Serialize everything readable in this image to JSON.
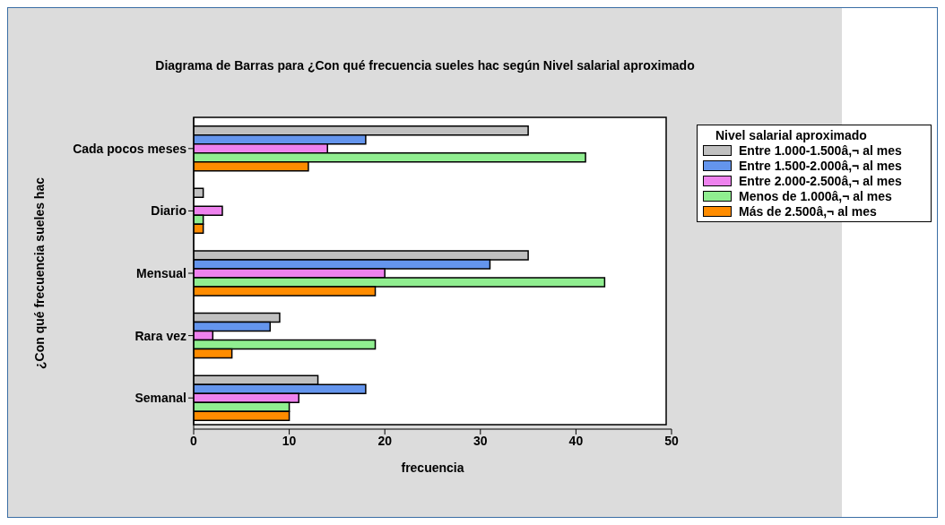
{
  "chart_data": {
    "type": "bar",
    "orientation": "horizontal",
    "title": "Diagrama de Barras para ¿Con qué frecuencia sueles hac según Nivel salarial aproximado",
    "xlabel": "frecuencia",
    "ylabel": "¿Con qué frecuencia sueles hac",
    "legend_title": "Nivel salarial aproximado",
    "legend": "top right",
    "categories": [
      "Cada pocos meses",
      "Diario",
      "Mensual",
      "Rara vez",
      "Semanal"
    ],
    "series": [
      {
        "name": "Entre 1.000-1.500â,¬ al mes",
        "color": "#c0c0c0",
        "values": [
          35,
          1,
          35,
          9,
          13
        ]
      },
      {
        "name": "Entre 1.500-2.000â,¬ al mes",
        "color": "#6495ed",
        "values": [
          18,
          0,
          31,
          8,
          18
        ]
      },
      {
        "name": "Entre 2.000-2.500â,¬ al mes",
        "color": "#ee82ee",
        "values": [
          14,
          3,
          20,
          2,
          11
        ]
      },
      {
        "name": "Menos de 1.000â,¬ al mes",
        "color": "#90ee90",
        "values": [
          41,
          1,
          43,
          19,
          10
        ]
      },
      {
        "name": "Más de 2.500â,¬ al mes",
        "color": "#ff8c00",
        "values": [
          12,
          1,
          19,
          4,
          10
        ]
      }
    ],
    "xlim": [
      0,
      50
    ],
    "xticks": [
      0,
      10,
      20,
      30,
      40,
      50
    ],
    "grid": false
  }
}
